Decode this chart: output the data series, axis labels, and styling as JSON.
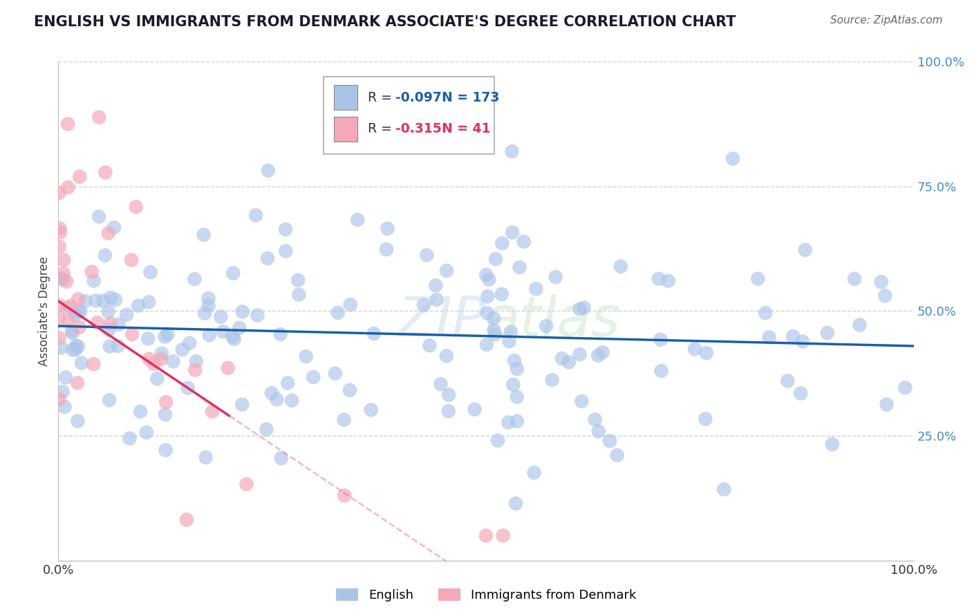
{
  "title": "ENGLISH VS IMMIGRANTS FROM DENMARK ASSOCIATE'S DEGREE CORRELATION CHART",
  "source": "Source: ZipAtlas.com",
  "ylabel": "Associate's Degree",
  "xlim": [
    0.0,
    1.0
  ],
  "ylim": [
    0.0,
    1.0
  ],
  "english_R": -0.097,
  "english_N": 173,
  "denmark_R": -0.315,
  "denmark_N": 41,
  "english_color": "#aac4e8",
  "denmark_color": "#f4a8b8",
  "english_line_color": "#1a5fa8",
  "denmark_line_color": "#e03060",
  "background_color": "#ffffff",
  "grid_color": "#cccccc",
  "title_color": "#1a1a2e",
  "source_color": "#666666",
  "ytick_color": "#4488cc",
  "xtick_color": "#333333"
}
